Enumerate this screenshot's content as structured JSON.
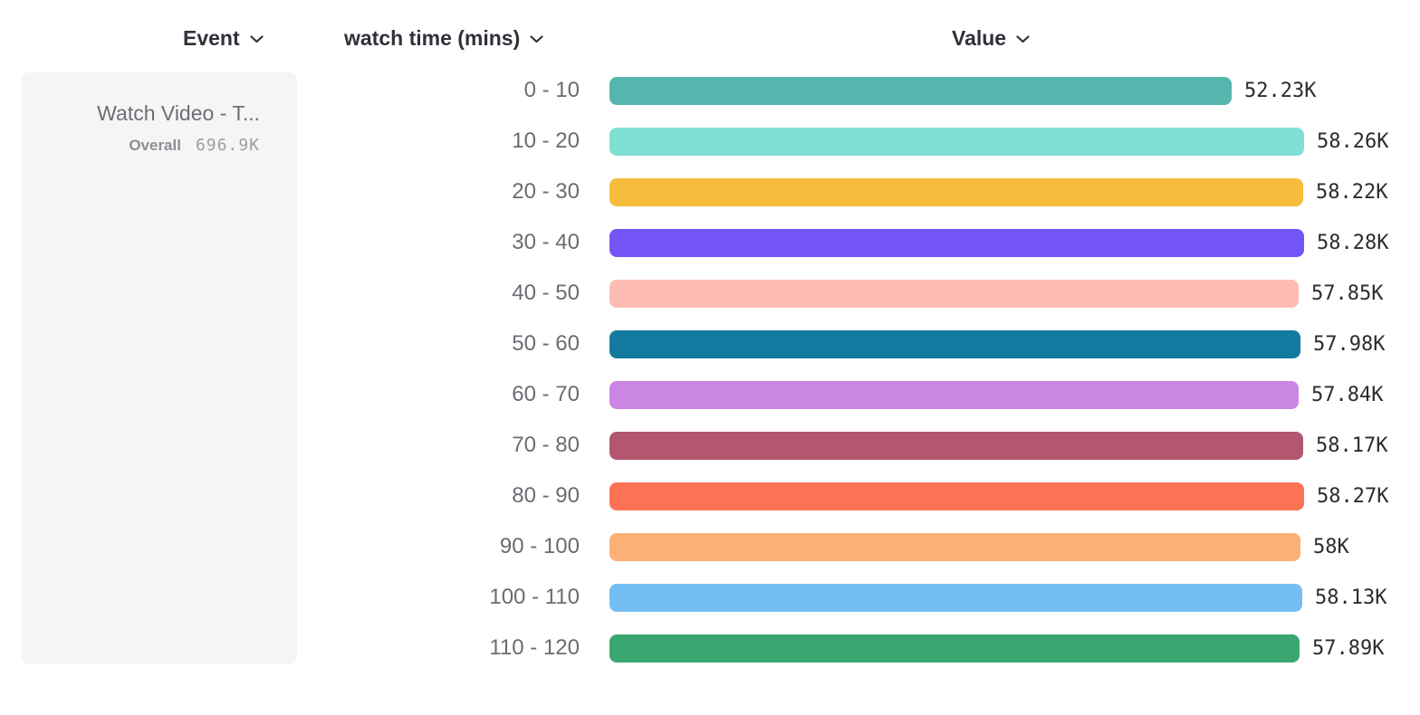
{
  "columns": {
    "event": {
      "label": "Event"
    },
    "breakdown": {
      "label": "watch time (mins)"
    },
    "value": {
      "label": "Value"
    }
  },
  "event_card": {
    "name": "Watch Video - T...",
    "overall_label": "Overall",
    "overall_value": "696.9K"
  },
  "chart_data": {
    "type": "bar",
    "orientation": "horizontal",
    "title": "",
    "xlabel": "Value",
    "ylabel": "watch time (mins)",
    "categories": [
      "0 - 10",
      "10 - 20",
      "20 - 30",
      "30 - 40",
      "40 - 50",
      "50 - 60",
      "60 - 70",
      "70 - 80",
      "80 - 90",
      "90 - 100",
      "100 - 110",
      "110 - 120"
    ],
    "values": [
      52.23,
      58.26,
      58.22,
      58.28,
      57.85,
      57.98,
      57.84,
      58.17,
      58.27,
      58.0,
      58.13,
      57.89
    ],
    "unit": "K",
    "value_labels": [
      "52.23K",
      "58.26K",
      "58.22K",
      "58.28K",
      "57.85K",
      "57.98K",
      "57.84K",
      "58.17K",
      "58.27K",
      "58K",
      "58.13K",
      "57.89K"
    ],
    "colors": [
      "#55b6ae",
      "#80e0d4",
      "#f7bc3c",
      "#7455f5",
      "#fdbbb2",
      "#157a9f",
      "#cb85e2",
      "#b2576f",
      "#fd7254",
      "#fdb076",
      "#75bef5",
      "#3ba770"
    ],
    "xlim": [
      0,
      58.28
    ],
    "grid": false,
    "legend": false
  }
}
